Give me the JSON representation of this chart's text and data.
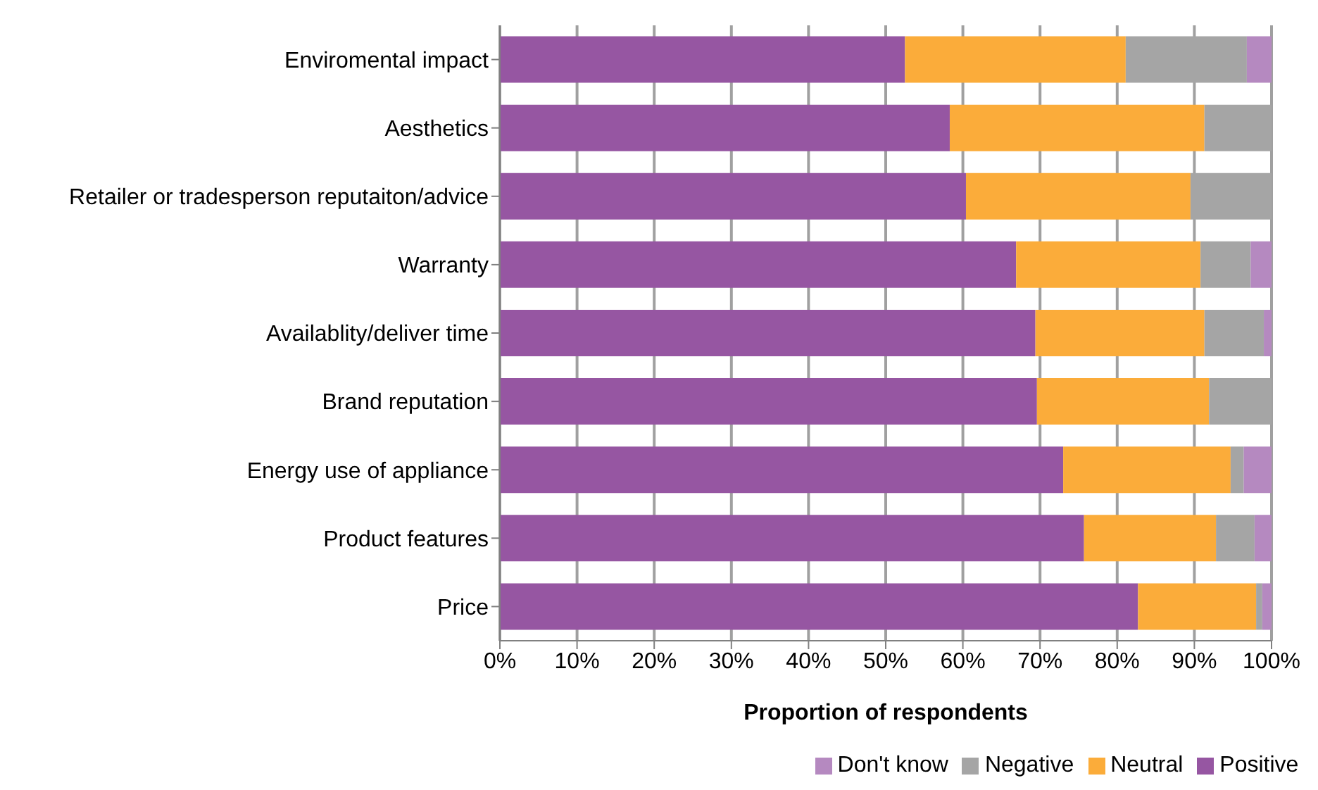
{
  "chart_data": {
    "type": "bar",
    "orientation": "horizontal",
    "stacked": true,
    "xlabel": "Proportion of respondents",
    "categories": [
      "Enviromental impact",
      "Aesthetics",
      "Retailer or tradesperson reputaiton/advice",
      "Warranty",
      "Availablity/deliver time",
      "Brand reputation",
      "Energy use of appliance",
      "Product features",
      "Price"
    ],
    "series": [
      {
        "name": "Positive",
        "color": "#9656a2",
        "values": [
          52.5,
          58.3,
          60.4,
          66.9,
          69.4,
          69.6,
          73.0,
          75.7,
          82.7
        ]
      },
      {
        "name": "Neutral",
        "color": "#fbac3a",
        "values": [
          28.6,
          33.0,
          29.1,
          23.9,
          21.9,
          22.3,
          21.7,
          17.1,
          15.3
        ]
      },
      {
        "name": "Negative",
        "color": "#a5a5a5",
        "values": [
          15.7,
          8.7,
          10.5,
          6.5,
          7.7,
          8.1,
          1.7,
          5.0,
          0.8
        ]
      },
      {
        "name": "Don't know",
        "color": "#b589c0",
        "values": [
          3.2,
          0,
          0,
          2.7,
          1.0,
          0,
          3.6,
          2.2,
          1.2
        ]
      }
    ],
    "xlim": [
      0,
      100
    ],
    "xticks": [
      {
        "value": 0,
        "label": "0%"
      },
      {
        "value": 10,
        "label": "10%"
      },
      {
        "value": 20,
        "label": "20%"
      },
      {
        "value": 30,
        "label": "30%"
      },
      {
        "value": 40,
        "label": "40%"
      },
      {
        "value": 50,
        "label": "50%"
      },
      {
        "value": 60,
        "label": "60%"
      },
      {
        "value": 70,
        "label": "70%"
      },
      {
        "value": 80,
        "label": "80%"
      },
      {
        "value": 90,
        "label": "90%"
      },
      {
        "value": 100,
        "label": "100%"
      }
    ],
    "grid": "x",
    "legend": "bottom"
  }
}
